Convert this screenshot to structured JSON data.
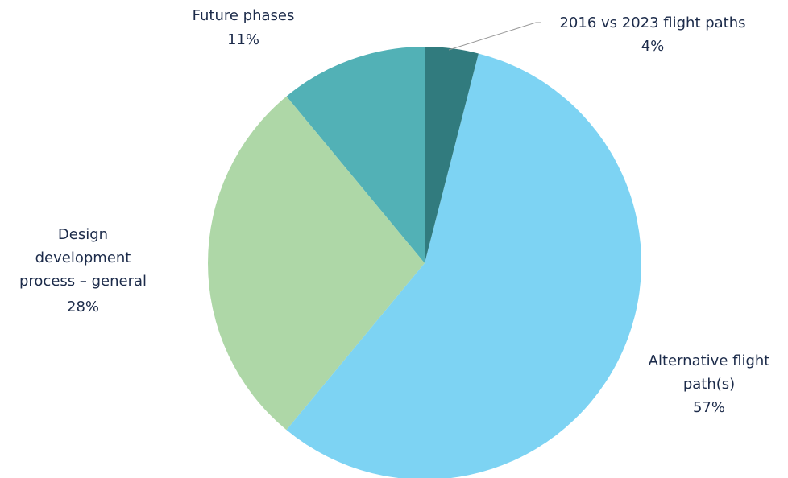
{
  "chart_data": {
    "type": "pie",
    "categories": [
      "2016 vs 2023 flight paths",
      "Alternative flight path(s)",
      "Design development process – general",
      "Future phases"
    ],
    "values": [
      4,
      57,
      28,
      11
    ],
    "value_labels": [
      "4%",
      "57%",
      "28%",
      "11%"
    ],
    "colors": [
      "#317b7e",
      "#7dd3f3",
      "#aed7a7",
      "#52b1b6"
    ]
  }
}
